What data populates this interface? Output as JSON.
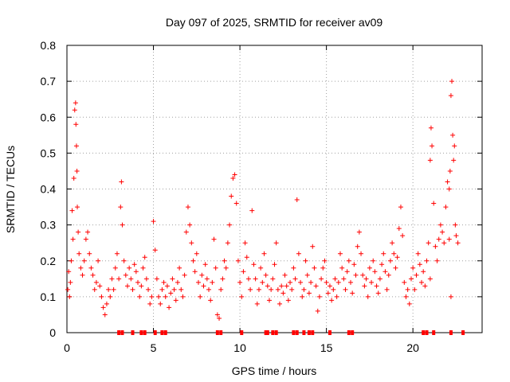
{
  "chart_data": {
    "type": "scatter",
    "title": "Day 097 of 2025, SRMTID for receiver av09",
    "xlabel": "GPS time / hours",
    "ylabel": "SRMTID / TECUs",
    "xlim": [
      0,
      24
    ],
    "ylim": [
      0,
      0.8
    ],
    "xticks": [
      0,
      5,
      10,
      15,
      20
    ],
    "yticks": [
      0,
      0.1,
      0.2,
      0.3,
      0.4,
      0.5,
      0.6,
      0.7,
      0.8
    ],
    "grid": true,
    "marker": "+",
    "color": "#ff0000",
    "series": [
      {
        "name": "SRMTID",
        "points": [
          [
            0.05,
            0.12
          ],
          [
            0.1,
            0.17
          ],
          [
            0.15,
            0.1
          ],
          [
            0.2,
            0.14
          ],
          [
            0.25,
            0.2
          ],
          [
            0.3,
            0.34
          ],
          [
            0.35,
            0.26
          ],
          [
            0.4,
            0.43
          ],
          [
            0.45,
            0.62
          ],
          [
            0.5,
            0.64
          ],
          [
            0.52,
            0.58
          ],
          [
            0.55,
            0.52
          ],
          [
            0.58,
            0.45
          ],
          [
            0.6,
            0.35
          ],
          [
            0.65,
            0.28
          ],
          [
            0.7,
            0.22
          ],
          [
            0.8,
            0.18
          ],
          [
            0.9,
            0.16
          ],
          [
            1.0,
            0.2
          ],
          [
            1.1,
            0.26
          ],
          [
            1.2,
            0.28
          ],
          [
            1.3,
            0.22
          ],
          [
            1.4,
            0.18
          ],
          [
            1.5,
            0.16
          ],
          [
            1.6,
            0.12
          ],
          [
            1.7,
            0.14
          ],
          [
            1.8,
            0.2
          ],
          [
            1.9,
            0.13
          ],
          [
            2.0,
            0.1
          ],
          [
            2.1,
            0.07
          ],
          [
            2.2,
            0.05
          ],
          [
            2.3,
            0.08
          ],
          [
            2.4,
            0.12
          ],
          [
            2.5,
            0.1
          ],
          [
            2.6,
            0.15
          ],
          [
            2.7,
            0.12
          ],
          [
            2.8,
            0.18
          ],
          [
            2.9,
            0.22
          ],
          [
            3.0,
            0.15
          ],
          [
            3.1,
            0.35
          ],
          [
            3.15,
            0.42
          ],
          [
            3.2,
            0.3
          ],
          [
            3.3,
            0.2
          ],
          [
            3.4,
            0.16
          ],
          [
            3.5,
            0.13
          ],
          [
            3.6,
            0.18
          ],
          [
            3.7,
            0.15
          ],
          [
            3.8,
            0.12
          ],
          [
            3.9,
            0.19
          ],
          [
            4.0,
            0.17
          ],
          [
            4.1,
            0.14
          ],
          [
            4.2,
            0.1
          ],
          [
            4.3,
            0.13
          ],
          [
            4.4,
            0.18
          ],
          [
            4.5,
            0.21
          ],
          [
            4.6,
            0.15
          ],
          [
            4.7,
            0.12
          ],
          [
            4.8,
            0.08
          ],
          [
            4.9,
            0.1
          ],
          [
            5.0,
            0.31
          ],
          [
            5.1,
            0.23
          ],
          [
            5.2,
            0.15
          ],
          [
            5.3,
            0.1
          ],
          [
            5.4,
            0.08
          ],
          [
            5.5,
            0.12
          ],
          [
            5.6,
            0.14
          ],
          [
            5.7,
            0.1
          ],
          [
            5.8,
            0.13
          ],
          [
            5.9,
            0.07
          ],
          [
            6.0,
            0.11
          ],
          [
            6.1,
            0.15
          ],
          [
            6.2,
            0.12
          ],
          [
            6.3,
            0.09
          ],
          [
            6.4,
            0.14
          ],
          [
            6.5,
            0.18
          ],
          [
            6.6,
            0.12
          ],
          [
            6.7,
            0.1
          ],
          [
            6.8,
            0.16
          ],
          [
            6.9,
            0.28
          ],
          [
            7.0,
            0.35
          ],
          [
            7.1,
            0.3
          ],
          [
            7.2,
            0.25
          ],
          [
            7.3,
            0.2
          ],
          [
            7.4,
            0.17
          ],
          [
            7.5,
            0.22
          ],
          [
            7.6,
            0.14
          ],
          [
            7.7,
            0.1
          ],
          [
            7.8,
            0.16
          ],
          [
            7.9,
            0.13
          ],
          [
            8.0,
            0.19
          ],
          [
            8.1,
            0.15
          ],
          [
            8.2,
            0.12
          ],
          [
            8.3,
            0.09
          ],
          [
            8.4,
            0.14
          ],
          [
            8.5,
            0.26
          ],
          [
            8.6,
            0.18
          ],
          [
            8.7,
            0.05
          ],
          [
            8.8,
            0.04
          ],
          [
            8.9,
            0.12
          ],
          [
            9.0,
            0.15
          ],
          [
            9.1,
            0.2
          ],
          [
            9.2,
            0.18
          ],
          [
            9.3,
            0.25
          ],
          [
            9.4,
            0.3
          ],
          [
            9.5,
            0.38
          ],
          [
            9.6,
            0.43
          ],
          [
            9.7,
            0.44
          ],
          [
            9.8,
            0.36
          ],
          [
            9.9,
            0.2
          ],
          [
            10.0,
            0.14
          ],
          [
            10.1,
            0.1
          ],
          [
            10.2,
            0.17
          ],
          [
            10.3,
            0.25
          ],
          [
            10.4,
            0.21
          ],
          [
            10.5,
            0.15
          ],
          [
            10.6,
            0.12
          ],
          [
            10.7,
            0.34
          ],
          [
            10.8,
            0.19
          ],
          [
            10.9,
            0.15
          ],
          [
            11.0,
            0.08
          ],
          [
            11.1,
            0.12
          ],
          [
            11.2,
            0.18
          ],
          [
            11.3,
            0.14
          ],
          [
            11.4,
            0.22
          ],
          [
            11.5,
            0.16
          ],
          [
            11.6,
            0.13
          ],
          [
            11.7,
            0.09
          ],
          [
            11.8,
            0.12
          ],
          [
            11.9,
            0.15
          ],
          [
            12.0,
            0.19
          ],
          [
            12.1,
            0.25
          ],
          [
            12.2,
            0.12
          ],
          [
            12.3,
            0.08
          ],
          [
            12.4,
            0.13
          ],
          [
            12.5,
            0.11
          ],
          [
            12.6,
            0.16
          ],
          [
            12.7,
            0.13
          ],
          [
            12.8,
            0.09
          ],
          [
            12.9,
            0.14
          ],
          [
            13.0,
            0.12
          ],
          [
            13.1,
            0.18
          ],
          [
            13.2,
            0.15
          ],
          [
            13.3,
            0.37
          ],
          [
            13.4,
            0.22
          ],
          [
            13.5,
            0.14
          ],
          [
            13.6,
            0.1
          ],
          [
            13.7,
            0.12
          ],
          [
            13.8,
            0.2
          ],
          [
            13.9,
            0.16
          ],
          [
            14.0,
            0.11
          ],
          [
            14.1,
            0.14
          ],
          [
            14.2,
            0.24
          ],
          [
            14.3,
            0.18
          ],
          [
            14.4,
            0.13
          ],
          [
            14.5,
            0.06
          ],
          [
            14.6,
            0.1
          ],
          [
            14.7,
            0.15
          ],
          [
            14.8,
            0.18
          ],
          [
            14.9,
            0.2
          ],
          [
            15.0,
            0.14
          ],
          [
            15.1,
            0.11
          ],
          [
            15.2,
            0.13
          ],
          [
            15.3,
            0.09
          ],
          [
            15.4,
            0.12
          ],
          [
            15.5,
            0.15
          ],
          [
            15.6,
            0.1
          ],
          [
            15.7,
            0.14
          ],
          [
            15.8,
            0.22
          ],
          [
            15.9,
            0.18
          ],
          [
            16.0,
            0.15
          ],
          [
            16.1,
            0.12
          ],
          [
            16.2,
            0.17
          ],
          [
            16.3,
            0.2
          ],
          [
            16.4,
            0.14
          ],
          [
            16.5,
            0.11
          ],
          [
            16.6,
            0.19
          ],
          [
            16.7,
            0.16
          ],
          [
            16.8,
            0.24
          ],
          [
            16.9,
            0.28
          ],
          [
            17.0,
            0.22
          ],
          [
            17.1,
            0.16
          ],
          [
            17.2,
            0.13
          ],
          [
            17.3,
            0.15
          ],
          [
            17.4,
            0.1
          ],
          [
            17.5,
            0.18
          ],
          [
            17.6,
            0.14
          ],
          [
            17.7,
            0.2
          ],
          [
            17.8,
            0.17
          ],
          [
            17.9,
            0.13
          ],
          [
            18.0,
            0.11
          ],
          [
            18.1,
            0.15
          ],
          [
            18.2,
            0.19
          ],
          [
            18.3,
            0.22
          ],
          [
            18.4,
            0.17
          ],
          [
            18.5,
            0.12
          ],
          [
            18.6,
            0.16
          ],
          [
            18.7,
            0.2
          ],
          [
            18.8,
            0.25
          ],
          [
            18.9,
            0.22
          ],
          [
            19.0,
            0.18
          ],
          [
            19.1,
            0.21
          ],
          [
            19.2,
            0.29
          ],
          [
            19.3,
            0.35
          ],
          [
            19.4,
            0.27
          ],
          [
            19.5,
            0.14
          ],
          [
            19.6,
            0.1
          ],
          [
            19.7,
            0.12
          ],
          [
            19.8,
            0.08
          ],
          [
            19.9,
            0.15
          ],
          [
            20.0,
            0.18
          ],
          [
            20.1,
            0.12
          ],
          [
            20.2,
            0.16
          ],
          [
            20.3,
            0.22
          ],
          [
            20.4,
            0.19
          ],
          [
            20.5,
            0.14
          ],
          [
            20.6,
            0.17
          ],
          [
            20.7,
            0.13
          ],
          [
            20.8,
            0.2
          ],
          [
            20.9,
            0.25
          ],
          [
            21.0,
            0.48
          ],
          [
            21.05,
            0.57
          ],
          [
            21.1,
            0.52
          ],
          [
            21.2,
            0.36
          ],
          [
            21.3,
            0.24
          ],
          [
            21.4,
            0.2
          ],
          [
            21.5,
            0.26
          ],
          [
            21.6,
            0.3
          ],
          [
            21.7,
            0.28
          ],
          [
            21.8,
            0.25
          ],
          [
            21.9,
            0.35
          ],
          [
            22.0,
            0.42
          ],
          [
            22.1,
            0.4
          ],
          [
            22.15,
            0.45
          ],
          [
            22.2,
            0.66
          ],
          [
            22.25,
            0.7
          ],
          [
            22.3,
            0.55
          ],
          [
            22.35,
            0.48
          ],
          [
            22.4,
            0.52
          ],
          [
            22.45,
            0.3
          ],
          [
            22.5,
            0.27
          ],
          [
            22.6,
            0.25
          ],
          [
            22.2,
            0.1
          ],
          [
            22.1,
            0.26
          ],
          [
            21.0,
            0.15
          ]
        ]
      }
    ],
    "flags_y": 0,
    "flag_x": [
      3.0,
      3.2,
      3.8,
      4.3,
      4.5,
      5.1,
      5.5,
      5.7,
      8.7,
      8.9,
      10.1,
      11.5,
      11.6,
      11.9,
      12.1,
      13.1,
      13.3,
      13.7,
      14.0,
      14.2,
      15.2,
      16.3,
      16.5,
      20.6,
      20.8,
      21.2,
      22.2,
      22.9
    ]
  }
}
